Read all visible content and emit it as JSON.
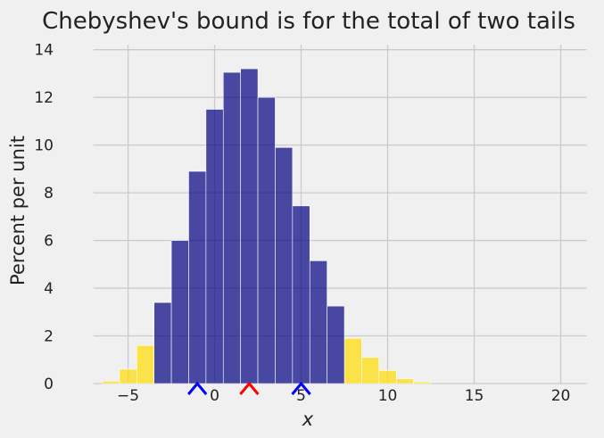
{
  "chart_data": {
    "type": "bar",
    "title": "Chebyshev's bound is for the total of two tails",
    "xlabel": "x",
    "ylabel": "Percent per unit",
    "xlim": [
      -9,
      22.5
    ],
    "ylim": [
      0,
      14.4
    ],
    "xticks": [
      -5,
      0,
      5,
      10,
      15,
      20
    ],
    "yticks": [
      0,
      2,
      4,
      6,
      8,
      10,
      12,
      14
    ],
    "bin_width": 1,
    "grid": true,
    "series": [
      {
        "color": "#ffdc00",
        "bins": [
          {
            "start": -6.5,
            "value": 0.1
          },
          {
            "start": -5.5,
            "value": 0.6
          },
          {
            "start": -4.5,
            "value": 1.6
          },
          {
            "start": 7.5,
            "value": 1.9
          },
          {
            "start": 8.5,
            "value": 1.1
          },
          {
            "start": 9.5,
            "value": 0.55
          },
          {
            "start": 10.5,
            "value": 0.2
          },
          {
            "start": 11.5,
            "value": 0.07
          }
        ]
      },
      {
        "color": "#000080",
        "bins": [
          {
            "start": -3.5,
            "value": 3.4
          },
          {
            "start": -2.5,
            "value": 6.0
          },
          {
            "start": -1.5,
            "value": 8.9
          },
          {
            "start": -0.5,
            "value": 11.5
          },
          {
            "start": 0.5,
            "value": 13.05
          },
          {
            "start": 1.5,
            "value": 13.2
          },
          {
            "start": 2.5,
            "value": 12.0
          },
          {
            "start": 3.5,
            "value": 9.9
          },
          {
            "start": 4.5,
            "value": 7.45
          },
          {
            "start": 5.5,
            "value": 5.15
          },
          {
            "start": 6.5,
            "value": 3.25
          }
        ]
      }
    ],
    "markers": [
      {
        "x": -1,
        "color": "blue"
      },
      {
        "x": 2,
        "color": "red"
      },
      {
        "x": 5,
        "color": "blue"
      }
    ]
  }
}
